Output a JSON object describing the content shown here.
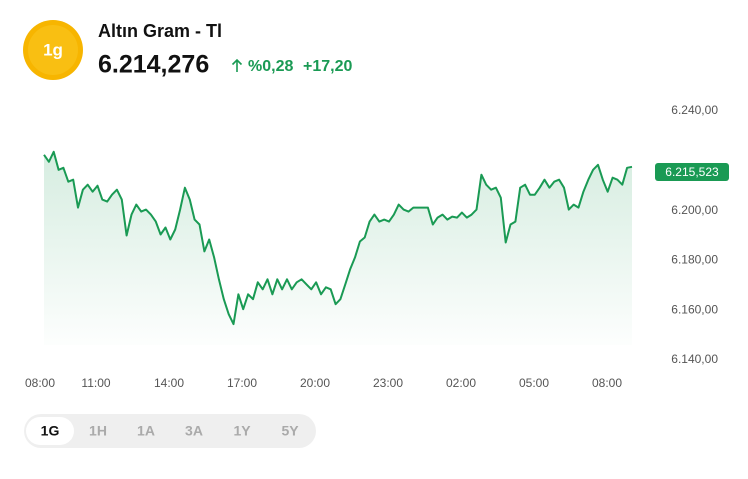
{
  "header": {
    "icon": "1g",
    "title": "Altın Gram - Tl",
    "price": "6.214,276",
    "change_percent": "%0,28",
    "change": "+17,20"
  },
  "chart_data": {
    "type": "line",
    "series": [
      {
        "color": "#1a9a54",
        "values": [
          6222.4,
          6219.6,
          6223.6,
          6216.4,
          6217.2,
          6211.6,
          6212.4,
          6201.2,
          6208.4,
          6210.4,
          6207.6,
          6210,
          6204.4,
          6203.6,
          6206.4,
          6208.4,
          6204.4,
          6190,
          6198.4,
          6202.4,
          6199.6,
          6200.4,
          6198.4,
          6195.6,
          6190.4,
          6193.2,
          6188.4,
          6192.4,
          6200.4,
          6209.2,
          6204.4,
          6196.4,
          6194.4,
          6183.6,
          6188.4,
          6181.2,
          6172.4,
          6164.4,
          6158.4,
          6154.4,
          6166.4,
          6160.4,
          6166.4,
          6164.4,
          6171.2,
          6168.4,
          6172.4,
          6166.4,
          6172.4,
          6168.4,
          6172.4,
          6168.4,
          6171.2,
          6172.4,
          6170.4,
          6168.4,
          6171.2,
          6166.4,
          6169.2,
          6168.4,
          6162.4,
          6164.4,
          6170.4,
          6176.4,
          6181.2,
          6187.6,
          6189.2,
          6195.6,
          6198.4,
          6195.6,
          6196.4,
          6195.6,
          6198.4,
          6202.4,
          6200.4,
          6199.6,
          6201.2,
          6201.2,
          6201.2,
          6201.2,
          6194.4,
          6197.2,
          6198.4,
          6196.4,
          6197.6,
          6197.2,
          6199.2,
          6197.2,
          6198.4,
          6200.4,
          6214.4,
          6210.4,
          6208.4,
          6209.2,
          6205.2,
          6187.2,
          6194.4,
          6195.6,
          6209.2,
          6210.4,
          6206.4,
          6206.4,
          6209.2,
          6212.4,
          6209.2,
          6211.6,
          6212.4,
          6209.2,
          6200.4,
          6202.4,
          6201.2,
          6207.6,
          6212.4,
          6216.4,
          6218.4,
          6212.4,
          6207.6,
          6213.2,
          6212.4,
          6210.4,
          6217.2,
          6217.6
        ]
      }
    ],
    "ylim": [
      6140,
      6240
    ],
    "yticks": [
      {
        "value": 6140,
        "label": "6.140,00"
      },
      {
        "value": 6160,
        "label": "6.160,00"
      },
      {
        "value": 6180,
        "label": "6.180,00"
      },
      {
        "value": 6200,
        "label": "6.200,00"
      },
      {
        "value": 6240,
        "label": "6.240,00"
      }
    ],
    "xtick_labels": [
      "08:00",
      "11:00",
      "14:00",
      "17:00",
      "20:00",
      "23:00",
      "02:00",
      "05:00",
      "08:00"
    ],
    "last_value": {
      "value": 6215.523,
      "label": "6.215,523"
    },
    "grid": false
  },
  "ranges": [
    "1G",
    "1H",
    "1A",
    "3A",
    "1Y",
    "5Y"
  ],
  "selected_range": 0
}
